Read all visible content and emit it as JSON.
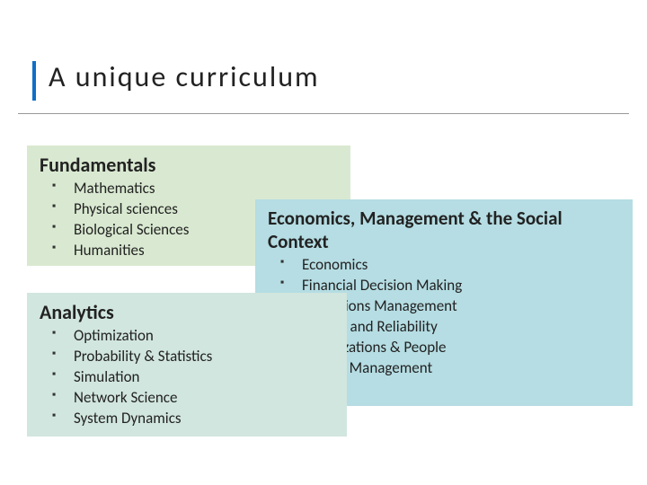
{
  "title": "A unique curriculum",
  "colors": {
    "accent_bar": "#0f6fc6",
    "fundamentals_bg": "#d9e9d1",
    "analytics_bg": "#d1e6de",
    "econ_bg": "#b5dde3",
    "text": "#222222",
    "rule": "#999999"
  },
  "sections": {
    "fundamentals": {
      "heading": "Fundamentals",
      "items": [
        "Mathematics",
        "Physical sciences",
        "Biological Sciences",
        "Humanities"
      ]
    },
    "analytics": {
      "heading": "Analytics",
      "items": [
        "Optimization",
        "Probability & Statistics",
        "Simulation",
        "Network Science",
        "System Dynamics"
      ]
    },
    "econ": {
      "heading": "Economics, Management & the Social Context",
      "items": [
        "Economics",
        "Financial Decision Making",
        "Operations Management",
        "Quality and Reliability",
        "Organizations & People",
        "Project Management"
      ]
    }
  }
}
